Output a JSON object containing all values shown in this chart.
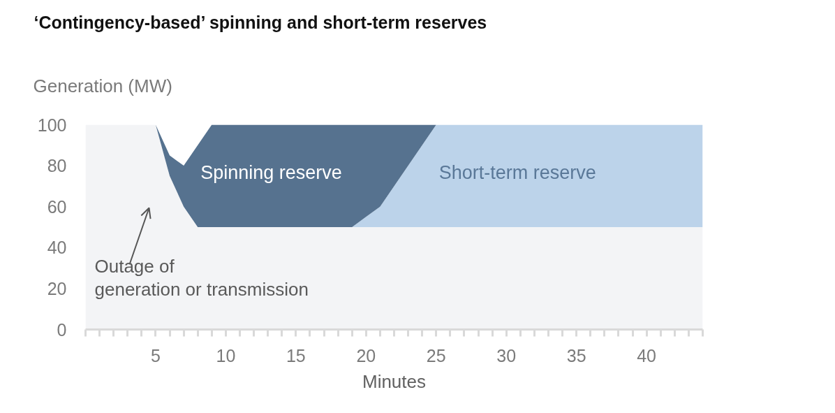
{
  "chart_data": {
    "type": "area",
    "title": "‘Contingency-based’ spinning and short-term reserves",
    "xlabel": "Minutes",
    "ylabel": "Generation (MW)",
    "x": [
      0,
      5,
      6,
      7,
      8,
      9,
      19,
      20,
      21,
      25,
      44
    ],
    "stacked": true,
    "series": [
      {
        "color": "#f3f4f6",
        "values": [
          100,
          100,
          75,
          60,
          50,
          50,
          50,
          50,
          50,
          50,
          50
        ]
      },
      {
        "name": "Short-term reserve",
        "color": "#bcd3ea",
        "values": [
          0,
          0,
          0,
          0,
          0,
          0,
          0,
          5,
          10,
          50,
          50
        ]
      },
      {
        "name": "Spinning reserve",
        "color": "#56728f",
        "x": [
          0,
          5,
          6,
          7,
          8,
          9,
          19,
          20,
          21,
          25
        ],
        "values": [
          0,
          0,
          10,
          20,
          40,
          50,
          50,
          45,
          40,
          0
        ]
      }
    ],
    "xlim": [
      0,
      44
    ],
    "ylim": [
      0,
      100
    ],
    "xticks": [
      {
        "value": 0,
        "label": null
      },
      {
        "value": 1,
        "label": null
      },
      {
        "value": 2,
        "label": null
      },
      {
        "value": 3,
        "label": null
      },
      {
        "value": 4,
        "label": null
      },
      5,
      {
        "value": 6,
        "label": null
      },
      {
        "value": 7,
        "label": null
      },
      {
        "value": 8,
        "label": null
      },
      {
        "value": 9,
        "label": null
      },
      10,
      {
        "value": 11,
        "label": null
      },
      {
        "value": 12,
        "label": null
      },
      {
        "value": 13,
        "label": null
      },
      {
        "value": 14,
        "label": null
      },
      15,
      {
        "value": 16,
        "label": null
      },
      {
        "value": 17,
        "label": null
      },
      {
        "value": 18,
        "label": null
      },
      {
        "value": 19,
        "label": null
      },
      20,
      {
        "value": 21,
        "label": null
      },
      {
        "value": 22,
        "label": null
      },
      {
        "value": 23,
        "label": null
      },
      {
        "value": 24,
        "label": null
      },
      25,
      {
        "value": 26,
        "label": null
      },
      {
        "value": 27,
        "label": null
      },
      {
        "value": 28,
        "label": null
      },
      {
        "value": 29,
        "label": null
      },
      30,
      {
        "value": 31,
        "label": null
      },
      {
        "value": 32,
        "label": null
      },
      {
        "value": 33,
        "label": null
      },
      {
        "value": 34,
        "label": null
      },
      35,
      {
        "value": 36,
        "label": null
      },
      {
        "value": 37,
        "label": null
      },
      {
        "value": 38,
        "label": null
      },
      {
        "value": 39,
        "label": null
      },
      40,
      {
        "value": 41,
        "label": null
      },
      {
        "value": 42,
        "label": null
      },
      {
        "value": 43,
        "label": null
      },
      {
        "value": 44,
        "label": null
      }
    ],
    "yticks": [
      0,
      20,
      40,
      60,
      80,
      100
    ],
    "annotations": [
      "Outage of\ngeneration or transmission"
    ]
  }
}
